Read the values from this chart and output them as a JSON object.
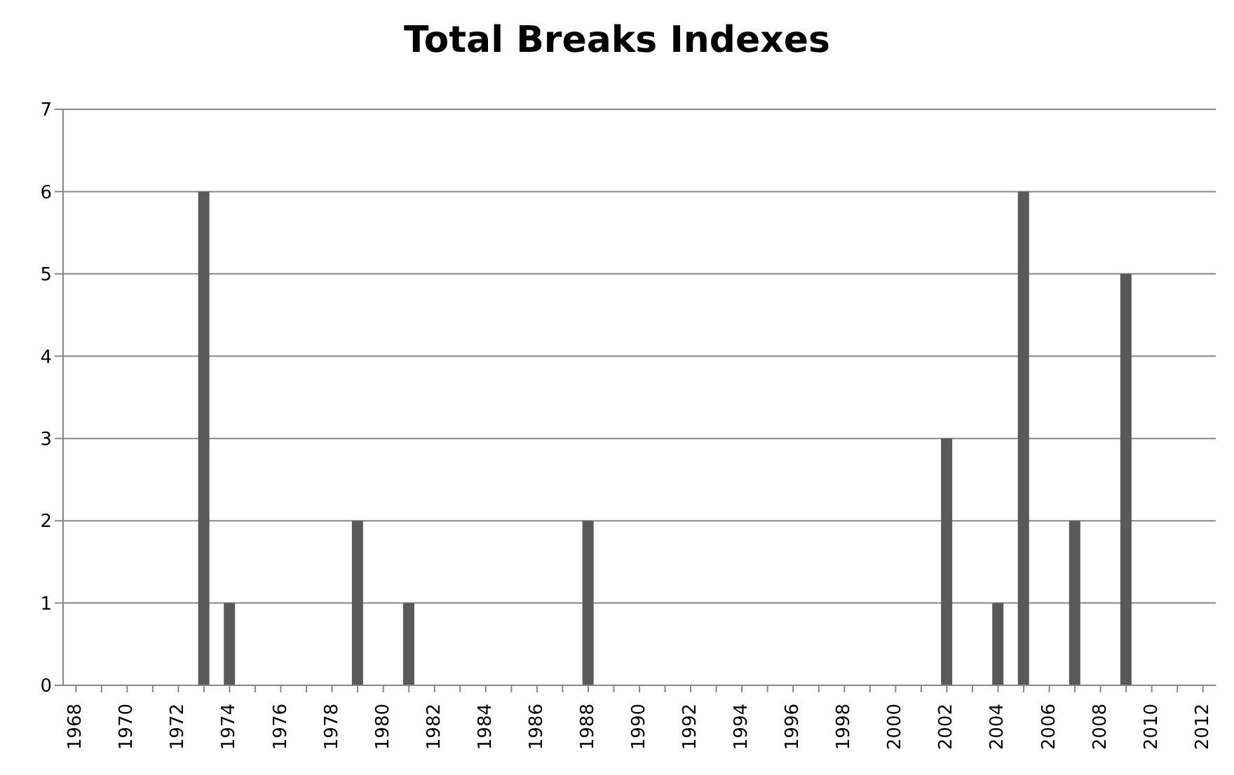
{
  "chart_data": {
    "type": "bar",
    "title": "Total Breaks Indexes",
    "categories": [
      "1968",
      null,
      "1970",
      null,
      "1972",
      null,
      "1974",
      null,
      "1976",
      null,
      "1978",
      null,
      "1980",
      null,
      "1982",
      null,
      "1984",
      null,
      "1986",
      null,
      "1988",
      null,
      "1990",
      null,
      "1992",
      null,
      "1994",
      null,
      "1996",
      null,
      "1998",
      null,
      "2000",
      null,
      "2002",
      null,
      "2004",
      null,
      "2006",
      null,
      "2008",
      null,
      "2010",
      null,
      "2012"
    ],
    "values": [
      0,
      0,
      0,
      0,
      0,
      6,
      1,
      0,
      0,
      0,
      0,
      2,
      0,
      1,
      0,
      0,
      0,
      0,
      0,
      0,
      2,
      0,
      0,
      0,
      0,
      0,
      0,
      0,
      0,
      0,
      0,
      0,
      0,
      0,
      3,
      0,
      1,
      6,
      0,
      2,
      0,
      5,
      0,
      0,
      0
    ],
    "color": "#595959",
    "ylim": [
      0,
      7
    ],
    "yticks": [
      0,
      1,
      2,
      3,
      4,
      5,
      6,
      7
    ],
    "grid": "y"
  }
}
